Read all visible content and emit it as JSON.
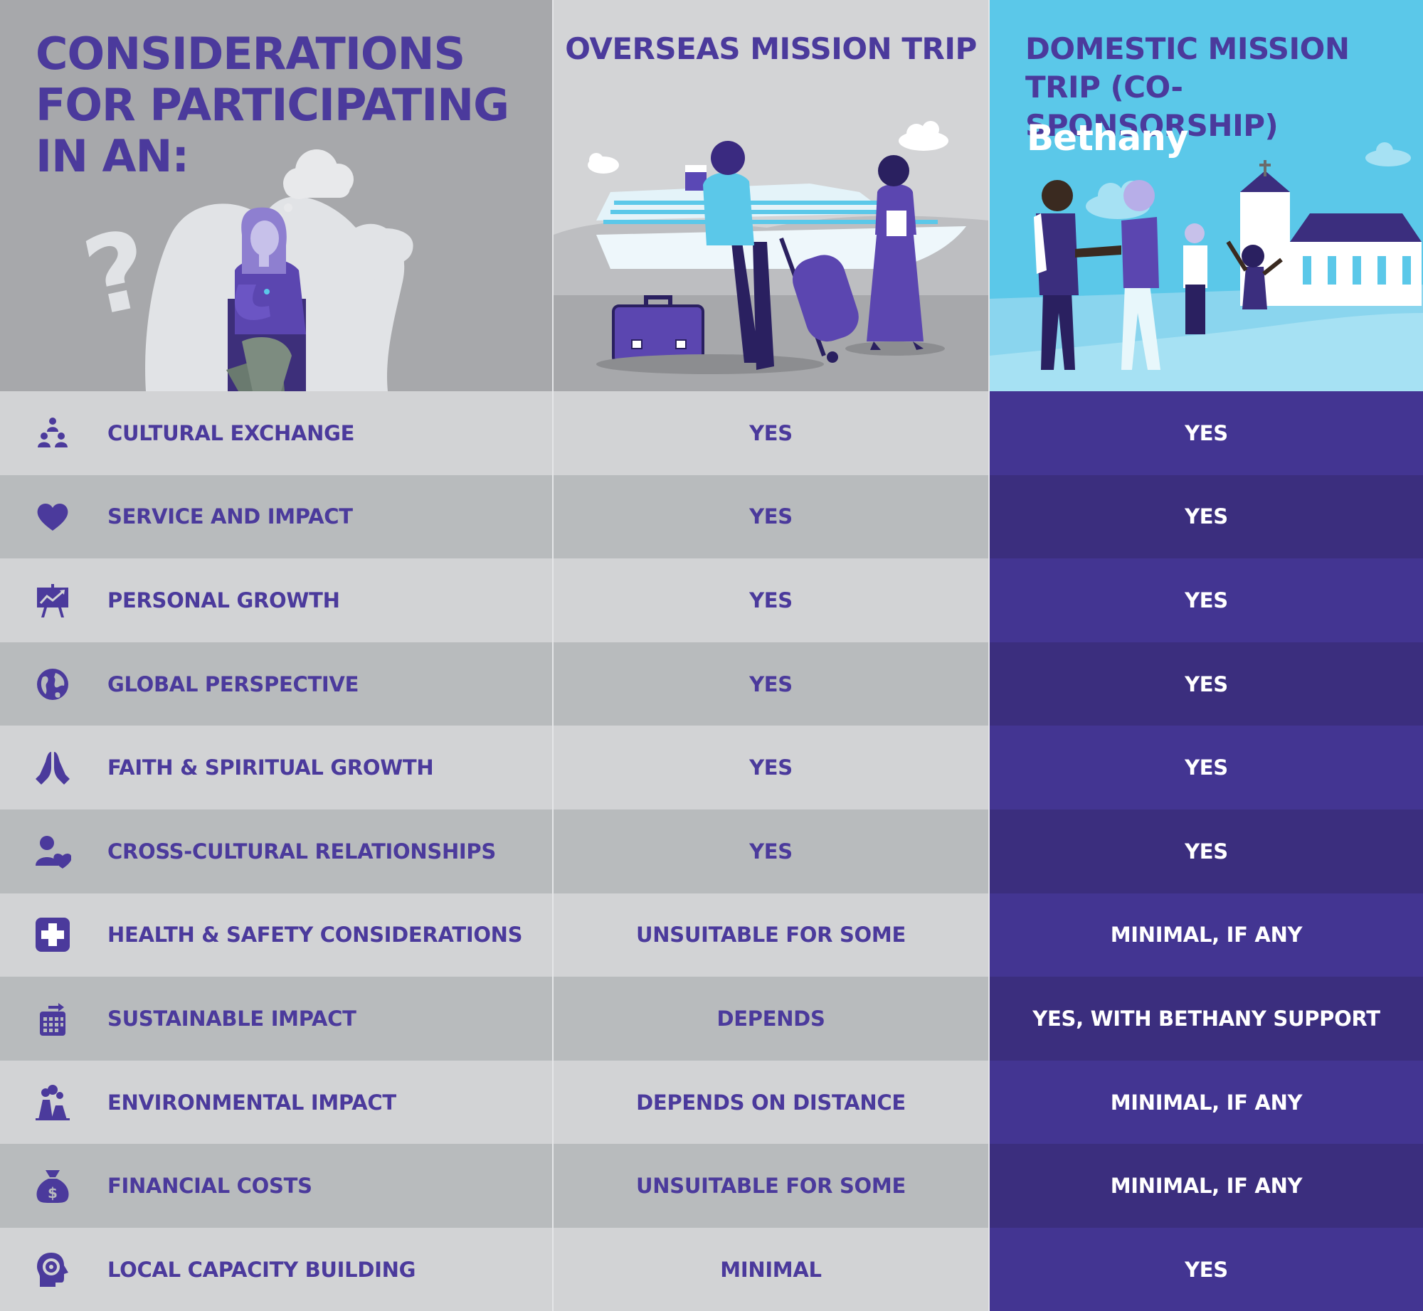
{
  "header": {
    "main_title": "CONSIDERATIONS FOR PARTICIPATING IN AN:",
    "overseas_title": "OVERSEAS MISSION TRIP",
    "domestic_title": "DOMESTIC MISSION TRIP (CO-SPONSORSHIP)",
    "brand": "Bethany"
  },
  "colors": {
    "accent_purple": "#4b3a9c",
    "domestic_blue": "#5bc8e9",
    "domestic_row_dark": "#3b2e7e",
    "domestic_row_light": "#433592",
    "grey_dark": "#a7a8ab",
    "grey_light": "#d3d4d6"
  },
  "rows": [
    {
      "icon": "people-group-icon",
      "label": "CULTURAL EXCHANGE",
      "overseas": "YES",
      "domestic": "YES"
    },
    {
      "icon": "heart-icon",
      "label": "SERVICE AND IMPACT",
      "overseas": "YES",
      "domestic": "YES"
    },
    {
      "icon": "growth-chart-icon",
      "label": "PERSONAL GROWTH",
      "overseas": "YES",
      "domestic": "YES"
    },
    {
      "icon": "globe-icon",
      "label": "GLOBAL PERSPECTIVE",
      "overseas": "YES",
      "domestic": "YES"
    },
    {
      "icon": "praying-hands-icon",
      "label": "FAITH & SPIRITUAL GROWTH",
      "overseas": "YES",
      "domestic": "YES"
    },
    {
      "icon": "person-heart-icon",
      "label": "CROSS-CULTURAL RELATIONSHIPS",
      "overseas": "YES",
      "domestic": "YES"
    },
    {
      "icon": "medical-cross-icon",
      "label": "HEALTH & SAFETY CONSIDERATIONS",
      "overseas": "UNSUITABLE FOR SOME",
      "domestic": "MINIMAL, IF ANY"
    },
    {
      "icon": "calendar-icon",
      "label": "SUSTAINABLE IMPACT",
      "overseas": "DEPENDS",
      "domestic": "YES, WITH BETHANY SUPPORT"
    },
    {
      "icon": "factory-icon",
      "label": "ENVIRONMENTAL IMPACT",
      "overseas": "DEPENDS ON DISTANCE",
      "domestic": "MINIMAL, IF ANY"
    },
    {
      "icon": "money-bag-icon",
      "label": "FINANCIAL COSTS",
      "overseas": "UNSUITABLE FOR SOME",
      "domestic": "MINIMAL, IF ANY"
    },
    {
      "icon": "head-gear-icon",
      "label": "LOCAL CAPACITY BUILDING",
      "overseas": "MINIMAL",
      "domestic": "YES"
    }
  ]
}
